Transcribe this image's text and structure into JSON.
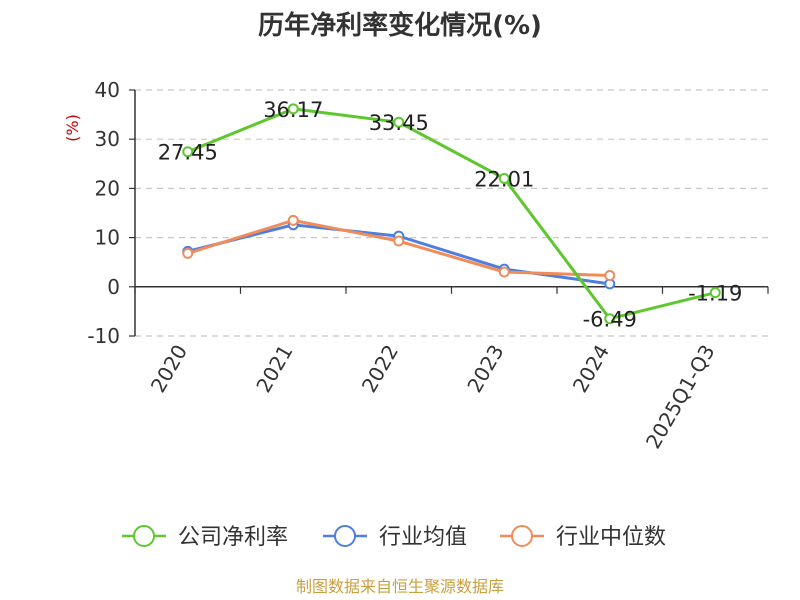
{
  "chart_data": {
    "type": "line",
    "title": "历年净利率变化情况(%)",
    "ylabel": "(%)",
    "xlabel": "",
    "categories": [
      "2020",
      "2021",
      "2022",
      "2023",
      "2024",
      "2025Q1-Q3"
    ],
    "yticks": [
      40,
      30,
      20,
      10,
      0,
      -10
    ],
    "ylim": [
      -10,
      40
    ],
    "grid": true,
    "legend_position": "bottom",
    "series": [
      {
        "name": "公司净利率",
        "color": "#5ec72e",
        "values": [
          27.45,
          36.17,
          33.45,
          22.01,
          -6.49,
          -1.19
        ],
        "labels": [
          "27.45",
          "36.17",
          "33.45",
          "22.01",
          "-6.49",
          "-1.19"
        ]
      },
      {
        "name": "行业均值",
        "color": "#4e7fde",
        "values": [
          7.2,
          12.6,
          10.3,
          3.6,
          0.6,
          null
        ]
      },
      {
        "name": "行业中位数",
        "color": "#f08c5a",
        "values": [
          6.8,
          13.5,
          9.3,
          3.0,
          2.3,
          null
        ]
      }
    ]
  },
  "footer": {
    "source": "制图数据来自恒生聚源数据库"
  }
}
